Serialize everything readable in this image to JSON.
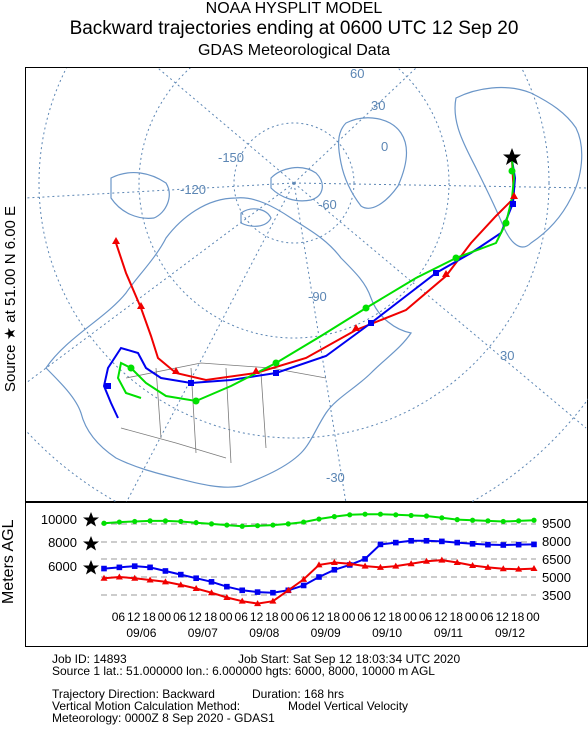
{
  "header": {
    "title1": "NOAA HYSPLIT MODEL",
    "title2": "Backward trajectories ending at 0600 UTC 12 Sep 20",
    "title3": "GDAS Meteorological Data"
  },
  "map": {
    "source_label": "Source ★ at    51.00 N    6.00 E",
    "graticule_labels": [
      "-150",
      "-120",
      "-90",
      "-60",
      "30",
      "0",
      "-30",
      "60",
      "30"
    ],
    "colors": {
      "coast": "#6b96c8",
      "grid": "#5c86b4",
      "land_border": "#7a7a7a"
    }
  },
  "altitude": {
    "ylabel": "Meters AGL",
    "left_ticks": [
      "10000",
      "8000",
      "6000"
    ],
    "right_ticks": [
      "9500",
      "8000",
      "6500",
      "5000",
      "3500"
    ],
    "time_ticks": [
      "00",
      "18",
      "12",
      "06",
      "00",
      "18",
      "12",
      "06",
      "00",
      "18",
      "12",
      "06",
      "00",
      "18",
      "12",
      "06",
      "00",
      "18",
      "12",
      "06",
      "00",
      "18",
      "12",
      "06",
      "00",
      "18",
      "12",
      "06"
    ],
    "date_labels": [
      "09/12",
      "09/11",
      "09/10",
      "09/09",
      "09/08",
      "09/07",
      "09/06"
    ]
  },
  "info": {
    "job_id": "Job ID: 14893",
    "job_start": "Job Start: Sat Sep 12 18:03:34 UTC 2020",
    "source_line": "Source 1 lat.: 51.000000   lon.: 6.000000   hgts: 6000, 8000, 10000 m AGL",
    "direction": "Trajectory Direction: Backward",
    "duration": "Duration: 168 hrs",
    "vertical_label": "Vertical Motion Calculation Method:",
    "vertical_value": "Model Vertical Velocity",
    "meteorology": "Meteorology: 0000Z  8 Sep 2020 - GDAS1"
  },
  "chart_data": {
    "type": "line",
    "title": "Backward trajectories ending at 0600 UTC 12 Sep 20",
    "ylabel": "Meters AGL",
    "x": [
      0,
      6,
      12,
      18,
      24,
      30,
      36,
      42,
      48,
      54,
      60,
      66,
      72,
      78,
      84,
      90,
      96,
      102,
      108,
      114,
      120,
      126,
      132,
      138,
      144,
      150,
      156,
      162,
      168
    ],
    "series": [
      {
        "color": "#00e000",
        "marker": "circle",
        "start_height": 10000,
        "values": [
          10000,
          9950,
          9900,
          9950,
          10000,
          10050,
          10200,
          10350,
          10400,
          10450,
          10500,
          10500,
          10450,
          10300,
          10100,
          9850,
          9700,
          9600,
          9550,
          9500,
          9600,
          9700,
          9800,
          9900,
          9950,
          9950,
          9900,
          9850,
          9750
        ]
      },
      {
        "color": "#0000f0",
        "marker": "square",
        "start_height": 8000,
        "values": [
          8000,
          7980,
          7950,
          7980,
          8050,
          8150,
          8250,
          8300,
          8300,
          8150,
          8000,
          6800,
          6300,
          5900,
          5300,
          4600,
          4200,
          4000,
          4050,
          4200,
          4500,
          4900,
          5200,
          5500,
          5800,
          6100,
          6200,
          6100,
          6000
        ]
      },
      {
        "color": "#f00000",
        "marker": "triangle",
        "start_height": 6000,
        "values": [
          6000,
          5950,
          5980,
          6100,
          6250,
          6500,
          6700,
          6600,
          6400,
          6200,
          6100,
          6200,
          6400,
          6500,
          6300,
          5100,
          4200,
          3300,
          3100,
          3300,
          3600,
          4000,
          4350,
          4650,
          4900,
          5050,
          5200,
          5300,
          5200
        ]
      }
    ],
    "right_axis_ticks": [
      9500,
      8000,
      6500,
      5000,
      3500
    ]
  }
}
